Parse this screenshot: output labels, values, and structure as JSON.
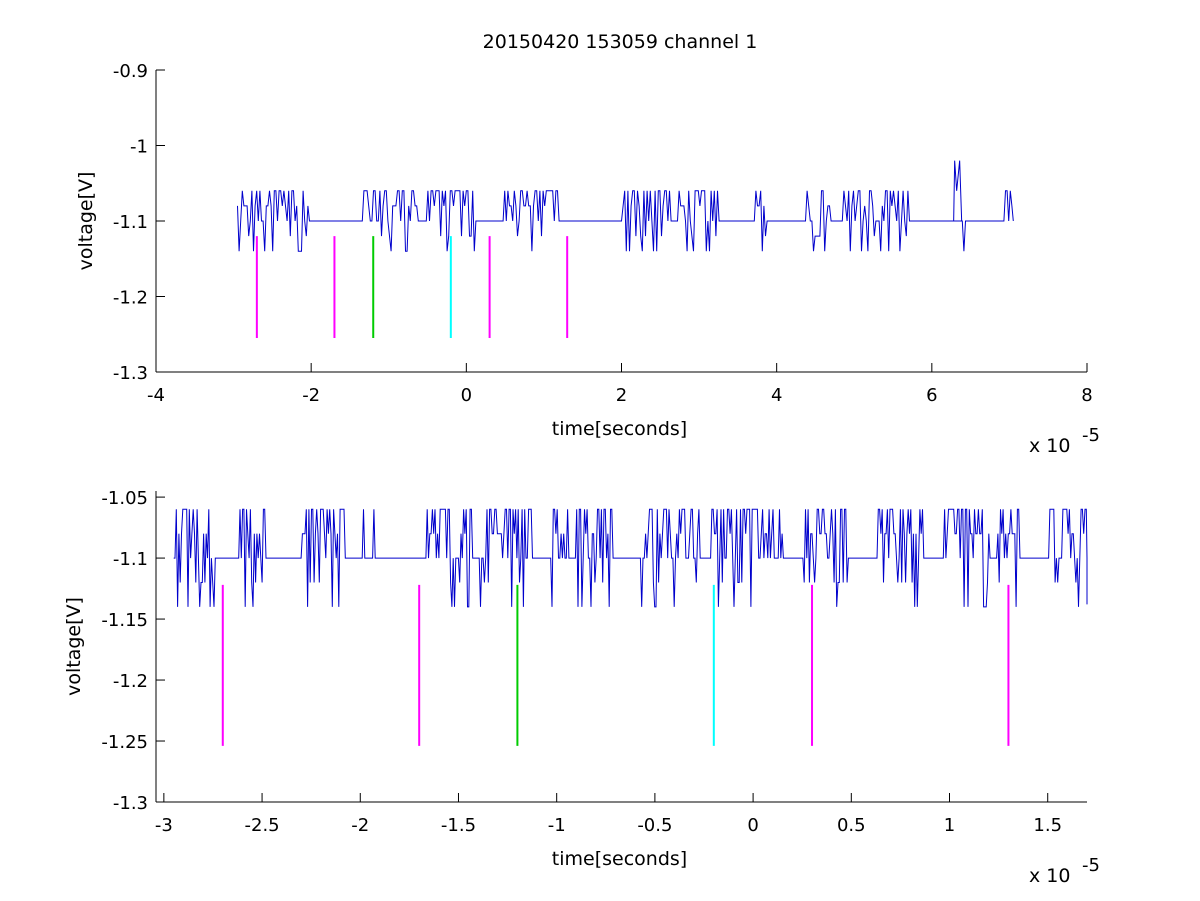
{
  "title": "20150420 153059 channel 1",
  "chart_data": [
    {
      "type": "line",
      "xlabel": "time[seconds]",
      "ylabel": "voltage[V]",
      "x_exponent_label": "x 10",
      "x_exponent_power": "-5",
      "xlim": [
        -4,
        8
      ],
      "ylim": [
        -1.3,
        -0.9
      ],
      "xticks": [
        -4,
        -2,
        0,
        2,
        4,
        6,
        8
      ],
      "xtick_labels": [
        "-4",
        "-2",
        "0",
        "2",
        "4",
        "6",
        "8"
      ],
      "yticks": [
        -1.3,
        -1.2,
        -1.1,
        -1,
        -0.9
      ],
      "ytick_labels": [
        "-1.3",
        "-1.2",
        "-1.1",
        "-1",
        "-0.9"
      ],
      "series": [
        {
          "color": "#0000cc",
          "x_start": -2.95,
          "x_end": 7.05,
          "baseline": -1.1,
          "up": -1.06,
          "down": -1.14,
          "spike": {
            "x": 6.32,
            "y": -1.02
          }
        }
      ],
      "markers": [
        {
          "x": -2.7,
          "y_top": -1.12,
          "y_bottom": -1.255,
          "color": "#ff00ff"
        },
        {
          "x": -1.7,
          "y_top": -1.12,
          "y_bottom": -1.255,
          "color": "#ff00ff"
        },
        {
          "x": -1.2,
          "y_top": -1.12,
          "y_bottom": -1.255,
          "color": "#00cc00"
        },
        {
          "x": -0.2,
          "y_top": -1.12,
          "y_bottom": -1.255,
          "color": "#00ffff"
        },
        {
          "x": 0.3,
          "y_top": -1.12,
          "y_bottom": -1.255,
          "color": "#ff00ff"
        },
        {
          "x": 1.3,
          "y_top": -1.12,
          "y_bottom": -1.255,
          "color": "#ff00ff"
        }
      ],
      "grid": false
    },
    {
      "type": "line",
      "xlabel": "time[seconds]",
      "ylabel": "voltage[V]",
      "x_exponent_label": "x 10",
      "x_exponent_power": "-5",
      "xlim": [
        -3.04,
        1.7
      ],
      "ylim": [
        -1.3,
        -1.045
      ],
      "xticks": [
        -3,
        -2.5,
        -2,
        -1.5,
        -1,
        -0.5,
        0,
        0.5,
        1,
        1.5
      ],
      "xtick_labels": [
        "-3",
        "-2.5",
        "-2",
        "-1.5",
        "-1",
        "-0.5",
        "0",
        "0.5",
        "1",
        "1.5"
      ],
      "yticks": [
        -1.3,
        -1.25,
        -1.2,
        -1.15,
        -1.1,
        -1.05
      ],
      "ytick_labels": [
        "-1.3",
        "-1.25",
        "-1.2",
        "-1.15",
        "-1.1",
        "-1.05"
      ],
      "series": [
        {
          "color": "#0000cc",
          "x_start": -2.95,
          "x_end": 1.7,
          "baseline": -1.1,
          "up": -1.06,
          "down": -1.14
        }
      ],
      "markers": [
        {
          "x": -2.7,
          "y_top": -1.122,
          "y_bottom": -1.254,
          "color": "#ff00ff"
        },
        {
          "x": -1.7,
          "y_top": -1.122,
          "y_bottom": -1.254,
          "color": "#ff00ff"
        },
        {
          "x": -1.2,
          "y_top": -1.122,
          "y_bottom": -1.254,
          "color": "#00cc00"
        },
        {
          "x": -0.2,
          "y_top": -1.122,
          "y_bottom": -1.254,
          "color": "#00ffff"
        },
        {
          "x": 0.3,
          "y_top": -1.122,
          "y_bottom": -1.254,
          "color": "#ff00ff"
        },
        {
          "x": 1.3,
          "y_top": -1.122,
          "y_bottom": -1.254,
          "color": "#ff00ff"
        }
      ],
      "grid": false
    }
  ]
}
